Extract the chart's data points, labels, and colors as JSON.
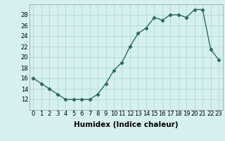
{
  "x": [
    0,
    1,
    2,
    3,
    4,
    5,
    6,
    7,
    8,
    9,
    10,
    11,
    12,
    13,
    14,
    15,
    16,
    17,
    18,
    19,
    20,
    21,
    22,
    23
  ],
  "y": [
    16,
    15,
    14,
    13,
    12,
    12,
    12,
    12,
    13,
    15,
    17.5,
    19,
    22,
    24.5,
    25.5,
    27.5,
    27,
    28,
    28,
    27.5,
    29,
    29,
    21.5,
    19.5
  ],
  "line_color": "#2e6b5e",
  "marker": "D",
  "marker_size": 2.2,
  "bg_color": "#d6f0f0",
  "grid_color": "#b0d8d8",
  "xlabel": "Humidex (Indice chaleur)",
  "xlabel_fontsize": 7.5,
  "xlim": [
    -0.5,
    23.5
  ],
  "ylim": [
    10,
    30
  ],
  "yticks": [
    12,
    14,
    16,
    18,
    20,
    22,
    24,
    26,
    28
  ],
  "xticks": [
    0,
    1,
    2,
    3,
    4,
    5,
    6,
    7,
    8,
    9,
    10,
    11,
    12,
    13,
    14,
    15,
    16,
    17,
    18,
    19,
    20,
    21,
    22,
    23
  ],
  "tick_fontsize": 6,
  "linewidth": 1.0
}
